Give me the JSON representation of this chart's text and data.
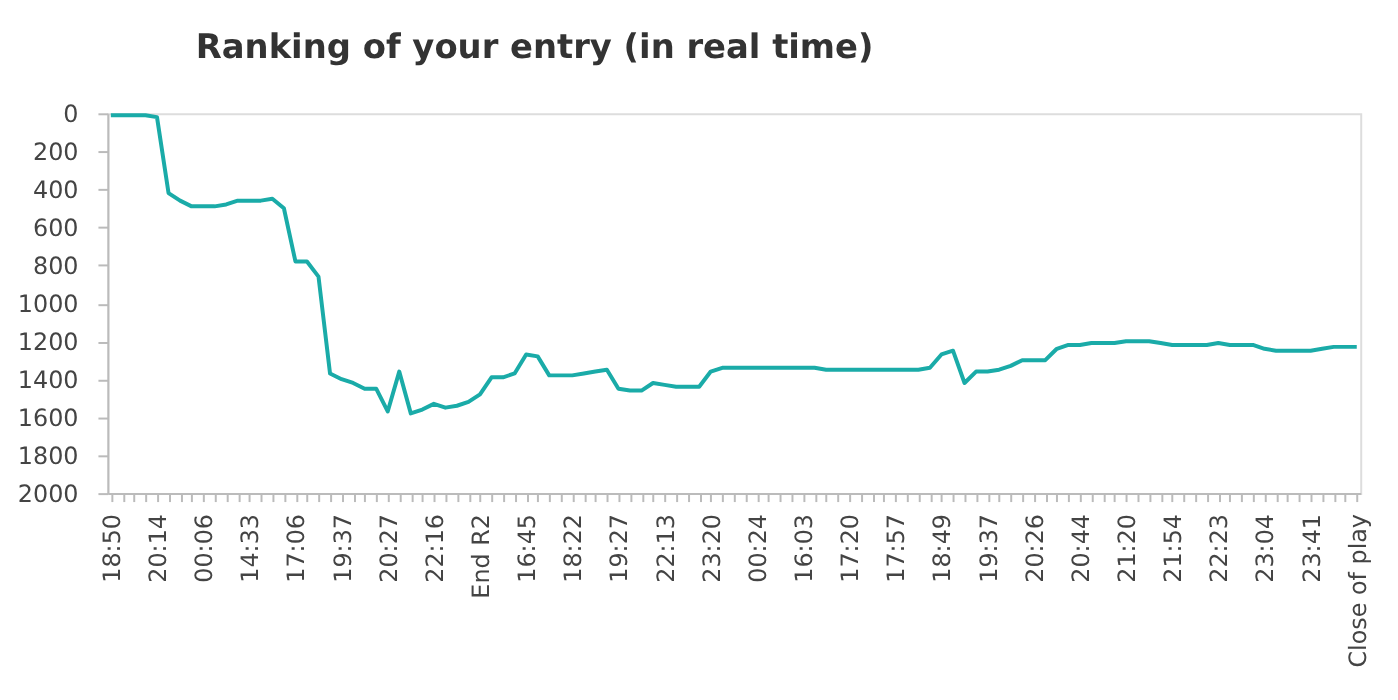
{
  "chart_data": {
    "type": "line",
    "title": "Ranking of your entry (in real time)",
    "categories": [
      "18:50",
      null,
      null,
      null,
      "20:14",
      null,
      null,
      null,
      "00:06",
      null,
      null,
      null,
      "14:33",
      null,
      null,
      null,
      "17:06",
      null,
      null,
      null,
      "19:37",
      null,
      null,
      null,
      "20:27",
      null,
      null,
      null,
      "22:16",
      null,
      null,
      null,
      "End R2",
      null,
      null,
      null,
      "16:45",
      null,
      null,
      null,
      "18:22",
      null,
      null,
      null,
      "19:27",
      null,
      null,
      null,
      "22:13",
      null,
      null,
      null,
      "23:20",
      null,
      null,
      null,
      "00:24",
      null,
      null,
      null,
      "16:03",
      null,
      null,
      null,
      "17:20",
      null,
      null,
      null,
      "17:57",
      null,
      null,
      null,
      "18:49",
      null,
      null,
      null,
      "19:37",
      null,
      null,
      null,
      "20:26",
      null,
      null,
      null,
      "20:44",
      null,
      null,
      null,
      "21:20",
      null,
      null,
      null,
      "21:54",
      null,
      null,
      null,
      "22:23",
      null,
      null,
      null,
      "23:04",
      null,
      null,
      null,
      "23:41",
      null,
      null,
      null,
      "Close of play"
    ],
    "series": [
      {
        "color": "#1aaba8",
        "values": [
          10,
          10,
          10,
          10,
          20,
          420,
          460,
          490,
          490,
          490,
          480,
          460,
          460,
          460,
          450,
          500,
          780,
          780,
          860,
          1370,
          1400,
          1420,
          1450,
          1450,
          1570,
          1360,
          1580,
          1560,
          1530,
          1550,
          1540,
          1520,
          1480,
          1390,
          1390,
          1370,
          1270,
          1280,
          1380,
          1380,
          1380,
          1370,
          1360,
          1350,
          1450,
          1460,
          1460,
          1420,
          1430,
          1440,
          1440,
          1440,
          1360,
          1340,
          1340,
          1340,
          1340,
          1340,
          1340,
          1340,
          1340,
          1340,
          1350,
          1350,
          1350,
          1350,
          1350,
          1350,
          1350,
          1350,
          1350,
          1340,
          1270,
          1250,
          1420,
          1360,
          1360,
          1350,
          1330,
          1300,
          1300,
          1300,
          1240,
          1220,
          1220,
          1210,
          1210,
          1210,
          1200,
          1200,
          1200,
          1210,
          1220,
          1220,
          1220,
          1220,
          1210,
          1220,
          1220,
          1220,
          1240,
          1250,
          1250,
          1250,
          1250,
          1240,
          1230,
          1230,
          1230
        ]
      }
    ],
    "ylim": [
      2000,
      0
    ],
    "yticks": [
      0,
      200,
      400,
      600,
      800,
      1000,
      1200,
      1400,
      1600,
      1800,
      2000
    ],
    "grid": false,
    "legend": false,
    "marker": "none",
    "line_style": "solid"
  }
}
